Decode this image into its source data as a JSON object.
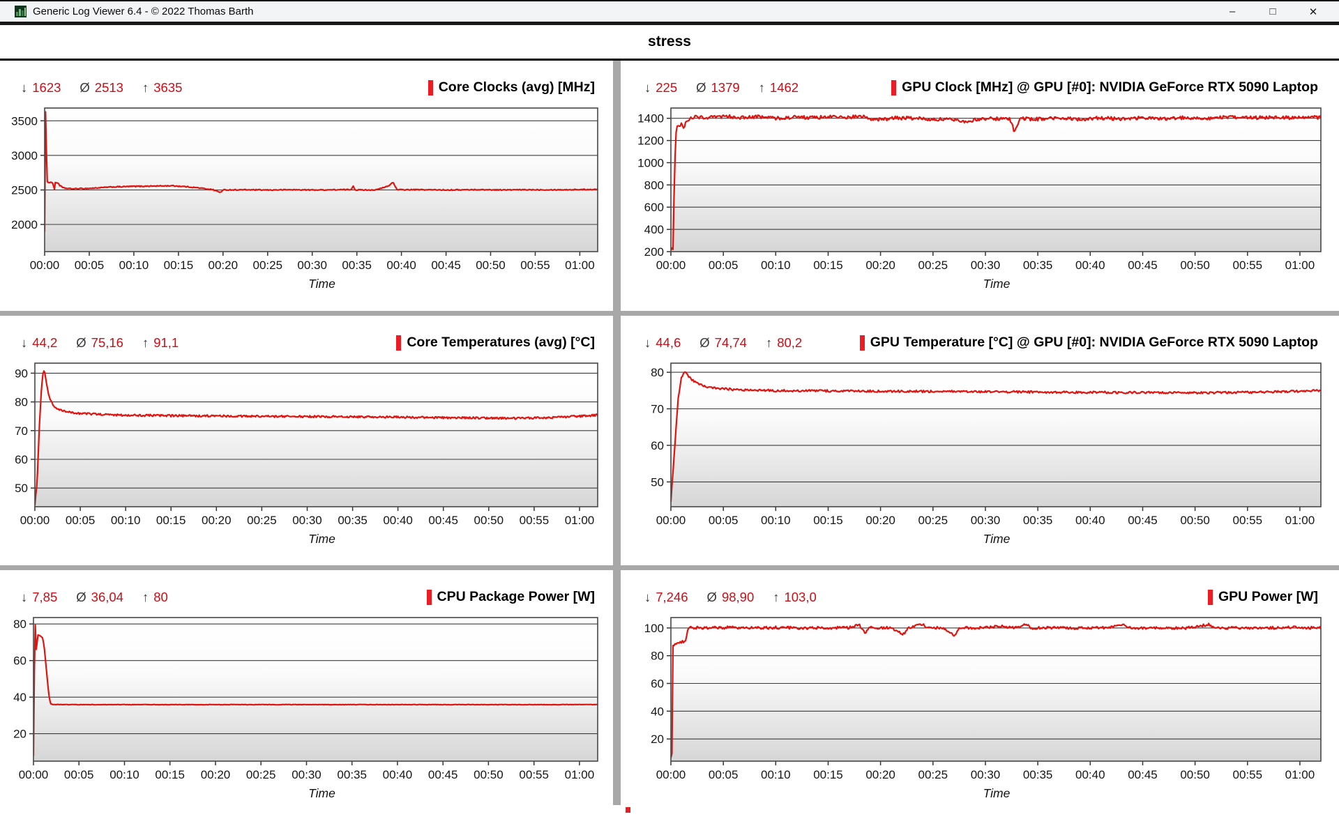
{
  "window": {
    "title": "Generic Log Viewer 6.4 - © 2022 Thomas Barth",
    "controls": {
      "minimize": "–",
      "maximize": "□",
      "close": "✕"
    }
  },
  "header": {
    "title": "stress"
  },
  "stats_legend": {
    "min": "↓",
    "avg": "Ø",
    "max": "↑"
  },
  "time_axis": {
    "label": "Time",
    "ticks": [
      "00:00",
      "00:05",
      "00:10",
      "00:15",
      "00:20",
      "00:25",
      "00:30",
      "00:35",
      "00:40",
      "00:45",
      "00:50",
      "00:55",
      "01:00"
    ]
  },
  "colors": {
    "series": "#e2130f",
    "marker": "#ec1c24",
    "stat_value": "#cf0d15",
    "divider": "#a8a8a8"
  },
  "chart_data": [
    {
      "type": "line",
      "title": "Core Clocks (avg) [MHz]",
      "stats": {
        "min": "1623",
        "avg": "2513",
        "max": "3635"
      },
      "y_ticks": [
        2000,
        2500,
        3000,
        3500
      ],
      "ylim": [
        1607,
        3685
      ],
      "xlim_seconds": [
        0,
        3720
      ],
      "noise": 7,
      "anchors": [
        [
          0,
          1900
        ],
        [
          2,
          1630
        ],
        [
          5,
          3635
        ],
        [
          9,
          3600
        ],
        [
          13,
          2850
        ],
        [
          17,
          2615
        ],
        [
          48,
          2608
        ],
        [
          58,
          2600
        ],
        [
          64,
          2468
        ],
        [
          70,
          2600
        ],
        [
          88,
          2606
        ],
        [
          102,
          2565
        ],
        [
          125,
          2528
        ],
        [
          180,
          2516
        ],
        [
          300,
          2522
        ],
        [
          450,
          2542
        ],
        [
          600,
          2552
        ],
        [
          750,
          2556
        ],
        [
          860,
          2560
        ],
        [
          950,
          2548
        ],
        [
          1040,
          2528
        ],
        [
          1130,
          2505
        ],
        [
          1180,
          2465
        ],
        [
          1205,
          2500
        ],
        [
          1350,
          2502
        ],
        [
          1500,
          2498
        ],
        [
          1650,
          2503
        ],
        [
          1800,
          2499
        ],
        [
          1950,
          2502
        ],
        [
          2060,
          2504
        ],
        [
          2075,
          2558
        ],
        [
          2090,
          2500
        ],
        [
          2230,
          2500
        ],
        [
          2310,
          2555
        ],
        [
          2345,
          2612
        ],
        [
          2370,
          2502
        ],
        [
          2500,
          2503
        ],
        [
          2700,
          2500
        ],
        [
          2900,
          2503
        ],
        [
          3100,
          2500
        ],
        [
          3300,
          2503
        ],
        [
          3500,
          2502
        ],
        [
          3720,
          2508
        ]
      ]
    },
    {
      "type": "line",
      "title": "GPU Clock [MHz] @ GPU [#0]: NVIDIA GeForce RTX 5090 Laptop",
      "stats": {
        "min": "225",
        "avg": "1379",
        "max": "1462"
      },
      "y_ticks": [
        200,
        400,
        600,
        800,
        1000,
        1200,
        1400
      ],
      "ylim": [
        200,
        1492
      ],
      "xlim_seconds": [
        0,
        3720
      ],
      "noise": 16,
      "anchors": [
        [
          0,
          225
        ],
        [
          12,
          232
        ],
        [
          22,
          1000
        ],
        [
          32,
          1330
        ],
        [
          60,
          1345
        ],
        [
          75,
          1308
        ],
        [
          90,
          1378
        ],
        [
          110,
          1402
        ],
        [
          140,
          1412
        ],
        [
          220,
          1406
        ],
        [
          320,
          1416
        ],
        [
          420,
          1405
        ],
        [
          520,
          1414
        ],
        [
          620,
          1400
        ],
        [
          720,
          1412
        ],
        [
          820,
          1404
        ],
        [
          920,
          1414
        ],
        [
          1020,
          1408
        ],
        [
          1090,
          1418
        ],
        [
          1150,
          1394
        ],
        [
          1210,
          1386
        ],
        [
          1290,
          1404
        ],
        [
          1400,
          1398
        ],
        [
          1520,
          1392
        ],
        [
          1620,
          1386
        ],
        [
          1700,
          1372
        ],
        [
          1780,
          1398
        ],
        [
          1880,
          1394
        ],
        [
          1940,
          1398
        ],
        [
          1968,
          1272
        ],
        [
          1995,
          1396
        ],
        [
          2100,
          1392
        ],
        [
          2220,
          1400
        ],
        [
          2340,
          1390
        ],
        [
          2460,
          1402
        ],
        [
          2580,
          1394
        ],
        [
          2700,
          1404
        ],
        [
          2820,
          1396
        ],
        [
          2940,
          1406
        ],
        [
          3060,
          1400
        ],
        [
          3180,
          1408
        ],
        [
          3300,
          1402
        ],
        [
          3420,
          1410
        ],
        [
          3540,
          1404
        ],
        [
          3630,
          1412
        ],
        [
          3720,
          1406
        ]
      ]
    },
    {
      "type": "line",
      "title": "Core Temperatures (avg) [°C]",
      "stats": {
        "min": "44,2",
        "avg": "75,16",
        "max": "91,1"
      },
      "y_ticks": [
        50,
        60,
        70,
        80,
        90
      ],
      "ylim": [
        43.5,
        93.5
      ],
      "xlim_seconds": [
        0,
        3720
      ],
      "noise": 0.35,
      "anchors": [
        [
          0,
          44.2
        ],
        [
          15,
          52
        ],
        [
          30,
          72
        ],
        [
          45,
          86
        ],
        [
          55,
          90.5
        ],
        [
          60,
          91.1
        ],
        [
          70,
          89
        ],
        [
          85,
          84
        ],
        [
          100,
          81
        ],
        [
          120,
          78.8
        ],
        [
          150,
          77.5
        ],
        [
          200,
          76.6
        ],
        [
          300,
          76.0
        ],
        [
          450,
          75.6
        ],
        [
          600,
          75.4
        ],
        [
          900,
          75.2
        ],
        [
          1200,
          75.1
        ],
        [
          1500,
          75.0
        ],
        [
          1800,
          74.9
        ],
        [
          2100,
          74.8
        ],
        [
          2400,
          74.7
        ],
        [
          2700,
          74.5
        ],
        [
          3000,
          74.4
        ],
        [
          3200,
          74.3
        ],
        [
          3400,
          74.5
        ],
        [
          3550,
          74.9
        ],
        [
          3720,
          75.4
        ]
      ]
    },
    {
      "type": "line",
      "title": "GPU Temperature [°C] @ GPU [#0]: NVIDIA GeForce RTX 5090 Laptop",
      "stats": {
        "min": "44,6",
        "avg": "74,74",
        "max": "80,2"
      },
      "y_ticks": [
        50,
        60,
        70,
        80
      ],
      "ylim": [
        43.2,
        82.5
      ],
      "xlim_seconds": [
        0,
        3720
      ],
      "noise": 0.3,
      "anchors": [
        [
          0,
          44.6
        ],
        [
          20,
          58
        ],
        [
          40,
          72
        ],
        [
          60,
          78.5
        ],
        [
          80,
          80.2
        ],
        [
          100,
          79
        ],
        [
          130,
          77.5
        ],
        [
          180,
          76.3
        ],
        [
          250,
          75.6
        ],
        [
          400,
          75.2
        ],
        [
          600,
          75.0
        ],
        [
          900,
          74.9
        ],
        [
          1200,
          74.8
        ],
        [
          1500,
          74.75
        ],
        [
          1800,
          74.7
        ],
        [
          2100,
          74.6
        ],
        [
          2400,
          74.5
        ],
        [
          2700,
          74.45
        ],
        [
          3000,
          74.4
        ],
        [
          3300,
          74.5
        ],
        [
          3500,
          74.7
        ],
        [
          3720,
          75.0
        ]
      ]
    },
    {
      "type": "line",
      "title": "CPU Package Power [W]",
      "stats": {
        "min": "7,85",
        "avg": "36,04",
        "max": "80"
      },
      "y_ticks": [
        20,
        40,
        60,
        80
      ],
      "ylim": [
        5,
        83.5
      ],
      "xlim_seconds": [
        0,
        3720
      ],
      "noise": 0.12,
      "anchors": [
        [
          0,
          7.85
        ],
        [
          4,
          30
        ],
        [
          8,
          80
        ],
        [
          14,
          79
        ],
        [
          18,
          66
        ],
        [
          24,
          70
        ],
        [
          30,
          74
        ],
        [
          45,
          73.5
        ],
        [
          60,
          72.5
        ],
        [
          70,
          68
        ],
        [
          85,
          55
        ],
        [
          100,
          42
        ],
        [
          112,
          36.5
        ],
        [
          125,
          36.0
        ],
        [
          300,
          35.9
        ],
        [
          900,
          35.9
        ],
        [
          1800,
          35.9
        ],
        [
          2700,
          35.9
        ],
        [
          3720,
          35.9
        ]
      ]
    },
    {
      "type": "line",
      "title": "GPU Power [W]",
      "stats": {
        "min": "7,246",
        "avg": "98,90",
        "max": "103,0"
      },
      "y_ticks": [
        20,
        40,
        60,
        80,
        100
      ],
      "ylim": [
        4,
        107.5
      ],
      "xlim_seconds": [
        0,
        3720
      ],
      "noise": 1.0,
      "anchors": [
        [
          0,
          7.2
        ],
        [
          6,
          10
        ],
        [
          11,
          87
        ],
        [
          25,
          88.5
        ],
        [
          45,
          89
        ],
        [
          70,
          90
        ],
        [
          85,
          90.5
        ],
        [
          95,
          99
        ],
        [
          110,
          100.3
        ],
        [
          200,
          100
        ],
        [
          320,
          100.4
        ],
        [
          450,
          100
        ],
        [
          600,
          100.3
        ],
        [
          750,
          100
        ],
        [
          900,
          100.2
        ],
        [
          1020,
          100
        ],
        [
          1075,
          102.5
        ],
        [
          1090,
          100
        ],
        [
          1115,
          96.5
        ],
        [
          1135,
          100.2
        ],
        [
          1250,
          100
        ],
        [
          1335,
          95.5
        ],
        [
          1360,
          100.2
        ],
        [
          1440,
          103
        ],
        [
          1460,
          100
        ],
        [
          1550,
          100.2
        ],
        [
          1625,
          94.5
        ],
        [
          1650,
          100
        ],
        [
          1800,
          100.2
        ],
        [
          1890,
          101.5
        ],
        [
          1950,
          100
        ],
        [
          2040,
          102.3
        ],
        [
          2060,
          100
        ],
        [
          2200,
          100.2
        ],
        [
          2350,
          99.8
        ],
        [
          2500,
          100.3
        ],
        [
          2590,
          102
        ],
        [
          2620,
          100
        ],
        [
          2800,
          100.2
        ],
        [
          2950,
          99.9
        ],
        [
          3080,
          102.4
        ],
        [
          3110,
          100
        ],
        [
          3250,
          100.2
        ],
        [
          3400,
          100
        ],
        [
          3550,
          100.3
        ],
        [
          3720,
          100
        ]
      ]
    }
  ]
}
